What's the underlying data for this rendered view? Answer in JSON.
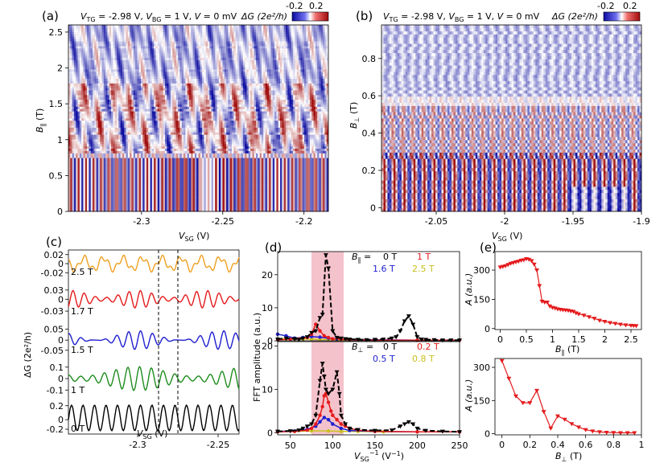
{
  "figure": {
    "panels": [
      "(a)",
      "(b)",
      "(c)",
      "(d)",
      "(e)"
    ]
  },
  "colors": {
    "black": "#000000",
    "red": "#e41a1c",
    "blue": "#1f1fd0",
    "orange": "#f0a020",
    "green": "#1e8c1e",
    "olive": "#c8c020",
    "pink_band": "#f4c2cb"
  },
  "chart_data": [
    {
      "panel": "(a)",
      "type": "heatmap",
      "title_parts": [
        "V",
        "TG",
        " = -2.98 V, ",
        "V",
        "BG",
        " = 1 V, ",
        "V",
        " = 0 mV"
      ],
      "colorbar_label": "ΔG (2e²/h)",
      "colorbar_ticks": [
        "-0.2",
        "0.2"
      ],
      "xlim": [
        -2.345,
        -2.185
      ],
      "ylim": [
        0,
        2.6
      ],
      "xticks": [
        -2.3,
        -2.25,
        -2.2
      ],
      "xtick_labels": [
        "-2.3",
        "-2.25",
        "-2.2"
      ],
      "yticks": [
        0,
        0.5,
        1,
        1.5,
        2,
        2.5
      ],
      "ytick_labels": [
        "0",
        "0.5",
        "1",
        "1.5",
        "2",
        "2.5"
      ],
      "xlabel": [
        "V",
        "SG",
        " (V)"
      ],
      "ylabel": [
        "B",
        "∥",
        " (T)"
      ]
    },
    {
      "panel": "(b)",
      "type": "heatmap",
      "title_parts": [
        "V",
        "TG",
        " = -2.98 V, ",
        "V",
        "BG",
        " = 1 V, ",
        "V",
        " = 0 mV"
      ],
      "colorbar_label": "ΔG (2e²/h)",
      "colorbar_ticks": [
        "-0.2",
        "0.2"
      ],
      "xlim": [
        -2.09,
        -1.9
      ],
      "ylim": [
        -0.02,
        0.98
      ],
      "xticks": [
        -2.05,
        -2.0,
        -1.95,
        -1.9
      ],
      "xtick_labels": [
        "-2.05",
        "-2",
        "-1.95",
        "-1.9"
      ],
      "yticks": [
        0,
        0.2,
        0.4,
        0.6,
        0.8
      ],
      "ytick_labels": [
        "0",
        "0.2",
        "0.4",
        "0.6",
        "0.8"
      ],
      "xlabel": [
        "V",
        "SG",
        " (V)"
      ],
      "ylabel": [
        "B",
        "⊥",
        " (T)"
      ]
    },
    {
      "panel": "(c)",
      "type": "line",
      "xlim": [
        -2.343,
        -2.237
      ],
      "xticks": [
        -2.3,
        -2.25
      ],
      "xtick_labels": [
        "-2.3",
        "-2.25"
      ],
      "xlabel": [
        "V",
        "SG",
        " (V)"
      ],
      "ylabel": "ΔG (2e²/h)",
      "dashed_lines_x": [
        -2.287,
        -2.275
      ],
      "series": [
        {
          "name": "2.5 T",
          "color": "#f0a020",
          "ylim": [
            -0.025,
            0.025
          ],
          "yticks": [
            "0.02",
            "0",
            "-0.02"
          ]
        },
        {
          "name": "1.7 T",
          "color": "#e41a1c",
          "ylim": [
            -0.045,
            0.035
          ],
          "yticks": [
            "0.03",
            "0",
            "-0.03"
          ]
        },
        {
          "name": "1.5 T",
          "color": "#1f1fd0",
          "ylim": [
            -0.065,
            0.07
          ],
          "yticks": [
            "0.05",
            "0",
            "-0.05"
          ]
        },
        {
          "name": "1 T",
          "color": "#1e8c1e",
          "ylim": [
            -0.14,
            0.14
          ],
          "yticks": [
            "0.1",
            "0",
            "-0.1"
          ]
        },
        {
          "name": "0 T",
          "color": "#000000",
          "ylim": [
            -0.22,
            0.32
          ],
          "yticks": [
            "0.2",
            "0",
            "-0.2"
          ]
        }
      ]
    },
    {
      "panel": "(d)",
      "type": "line",
      "xlim": [
        35,
        250
      ],
      "xticks": [
        50,
        100,
        150,
        200,
        250
      ],
      "xtick_labels": [
        "50",
        "100",
        "150",
        "200",
        "250"
      ],
      "xlabel": [
        "V",
        "SG",
        "−1",
        " (V",
        "−1",
        ")"
      ],
      "ylabel": "FFT amplitude (a.u.)",
      "shaded_band": [
        75,
        113
      ],
      "subplots": [
        {
          "ylim": [
            0,
            27
          ],
          "yticks": [
            0,
            10,
            20
          ],
          "legend_prefix": [
            "B",
            "∥",
            " ="
          ],
          "series": [
            {
              "name": "0 T",
              "color": "#000000",
              "style": "dashed",
              "x": [
                35,
                45,
                55,
                60,
                65,
                70,
                75,
                80,
                85,
                88,
                92,
                95,
                100,
                105,
                110,
                115,
                120,
                130,
                140,
                150,
                160,
                170,
                175,
                180,
                185,
                190,
                195,
                200,
                205,
                210,
                220,
                230,
                240,
                250
              ],
              "y": [
                0.5,
                0.8,
                0.6,
                0.4,
                0.8,
                1.2,
                2.5,
                3,
                7,
                8,
                26,
                22,
                3,
                1,
                0.8,
                0.6,
                0.5,
                0.4,
                0.3,
                0.4,
                0.5,
                0.8,
                1.2,
                3,
                6,
                7.5,
                5,
                1.2,
                0.5,
                0.4,
                0.3,
                0.2,
                0.2,
                0.2
              ]
            },
            {
              "name": "1 T",
              "color": "#e41a1c",
              "style": "solid",
              "x": [
                35,
                50,
                60,
                70,
                75,
                80,
                85,
                90,
                95,
                100,
                110,
                120,
                150,
                200,
                250
              ],
              "y": [
                0.3,
                0.5,
                0.6,
                1,
                2,
                5,
                3,
                1.5,
                1,
                0.6,
                0.5,
                0.3,
                0.2,
                0.2,
                0.2
              ]
            },
            {
              "name": "1.6 T",
              "color": "#1f1fd0",
              "style": "solid",
              "x": [
                35,
                45,
                55,
                65,
                75,
                85,
                95,
                105,
                120,
                150,
                200,
                250
              ],
              "y": [
                2,
                1.5,
                0.8,
                1,
                1.3,
                1.1,
                0.8,
                0.6,
                0.4,
                0.3,
                0.2,
                0.2
              ]
            },
            {
              "name": "2.5 T",
              "color": "#c8c020",
              "style": "solid",
              "x": [
                35,
                45,
                55,
                65,
                75,
                85,
                95,
                105,
                120,
                150,
                200,
                250
              ],
              "y": [
                0.6,
                0.6,
                0.5,
                0.5,
                0.5,
                0.4,
                0.4,
                0.3,
                0.3,
                0.2,
                0.2,
                0.2
              ]
            }
          ]
        },
        {
          "ylim": [
            -0.5,
            21
          ],
          "yticks": [
            0,
            10,
            20
          ],
          "legend_prefix": [
            "B",
            "⊥",
            " ="
          ],
          "series": [
            {
              "name": "0 T",
              "color": "#000000",
              "style": "dashed",
              "x": [
                35,
                50,
                60,
                65,
                70,
                75,
                80,
                85,
                88,
                90,
                92,
                95,
                100,
                105,
                108,
                110,
                115,
                120,
                130,
                150,
                170,
                180,
                185,
                190,
                195,
                200,
                210,
                230,
                250
              ],
              "y": [
                0.3,
                0.4,
                0.6,
                1,
                1.5,
                2,
                4,
                12,
                16,
                13,
                10,
                9,
                10,
                14,
                9,
                4,
                2,
                1,
                0.7,
                0.5,
                0.6,
                1.5,
                2,
                2.5,
                2,
                1,
                0.5,
                0.3,
                0.2
              ]
            },
            {
              "name": "0.2 T",
              "color": "#e41a1c",
              "style": "solid",
              "x": [
                35,
                55,
                70,
                75,
                80,
                85,
                88,
                90,
                92,
                95,
                98,
                100,
                105,
                110,
                115,
                120,
                130,
                150,
                200,
                250
              ],
              "y": [
                0.2,
                0.3,
                0.6,
                1,
                2,
                4,
                6,
                8.5,
                9,
                7,
                5,
                4,
                3,
                2,
                1.5,
                1,
                0.6,
                0.3,
                0.2,
                0.2
              ]
            },
            {
              "name": "0.5 T",
              "color": "#1f1fd0",
              "style": "solid",
              "x": [
                35,
                55,
                70,
                80,
                85,
                90,
                95,
                100,
                110,
                120,
                150,
                200,
                250
              ],
              "y": [
                0.3,
                0.4,
                0.8,
                1.5,
                2.5,
                3.5,
                3,
                2,
                1,
                0.5,
                0.3,
                0.2,
                0.2
              ]
            },
            {
              "name": "0.8 T",
              "color": "#c8c020",
              "style": "solid",
              "x": [
                35,
                55,
                75,
                95,
                110,
                130,
                160,
                200,
                250
              ],
              "y": [
                0.3,
                0.3,
                0.4,
                0.4,
                0.3,
                0.3,
                0.2,
                0.2,
                0.2
              ]
            }
          ]
        }
      ]
    },
    {
      "panel": "(e)",
      "type": "line",
      "subplots": [
        {
          "xlim": [
            -0.1,
            2.7
          ],
          "ylim": [
            -5,
            395
          ],
          "xticks": [
            0,
            0.5,
            1,
            1.5,
            2,
            2.5
          ],
          "xtick_labels": [
            "0",
            "0.5",
            "1",
            "1.5",
            "2",
            "2.5"
          ],
          "yticks": [
            0,
            150,
            300
          ],
          "ytick_labels": [
            "0",
            "150",
            "300"
          ],
          "xlabel": [
            "B",
            "∥",
            " (T)"
          ],
          "ylabel": "A (a.u.)",
          "color": "#e41a1c",
          "x": [
            0,
            0.05,
            0.1,
            0.15,
            0.2,
            0.25,
            0.3,
            0.35,
            0.4,
            0.45,
            0.5,
            0.55,
            0.6,
            0.65,
            0.7,
            0.75,
            0.8,
            0.85,
            0.9,
            0.95,
            1.0,
            1.05,
            1.1,
            1.15,
            1.2,
            1.25,
            1.3,
            1.35,
            1.4,
            1.45,
            1.5,
            1.6,
            1.7,
            1.8,
            1.9,
            2.0,
            2.1,
            2.2,
            2.3,
            2.4,
            2.5,
            2.55,
            2.6
          ],
          "y": [
            315,
            318,
            322,
            328,
            334,
            338,
            342,
            345,
            350,
            352,
            358,
            355,
            348,
            330,
            300,
            220,
            140,
            135,
            135,
            115,
            108,
            105,
            100,
            98,
            96,
            95,
            93,
            90,
            88,
            80,
            75,
            68,
            60,
            52,
            42,
            36,
            30,
            26,
            22,
            18,
            16,
            15,
            14
          ]
        },
        {
          "xlim": [
            -0.05,
            1.0
          ],
          "ylim": [
            -5,
            340
          ],
          "xticks": [
            0,
            0.2,
            0.4,
            0.6,
            0.8,
            1
          ],
          "xtick_labels": [
            "0",
            "0.2",
            "0.4",
            "0.6",
            "0.8",
            "1"
          ],
          "yticks": [
            0,
            150,
            300
          ],
          "ytick_labels": [
            "0",
            "150",
            "300"
          ],
          "xlabel": [
            "B",
            "⊥",
            " (T)"
          ],
          "ylabel": "A (a.u.)",
          "color": "#e41a1c",
          "x": [
            0,
            0.05,
            0.1,
            0.15,
            0.2,
            0.25,
            0.3,
            0.35,
            0.4,
            0.45,
            0.5,
            0.55,
            0.6,
            0.65,
            0.7,
            0.75,
            0.8,
            0.85,
            0.9,
            0.95
          ],
          "y": [
            330,
            250,
            170,
            140,
            140,
            195,
            100,
            25,
            80,
            65,
            45,
            30,
            18,
            12,
            8,
            6,
            5,
            4,
            4,
            4
          ]
        }
      ]
    }
  ]
}
